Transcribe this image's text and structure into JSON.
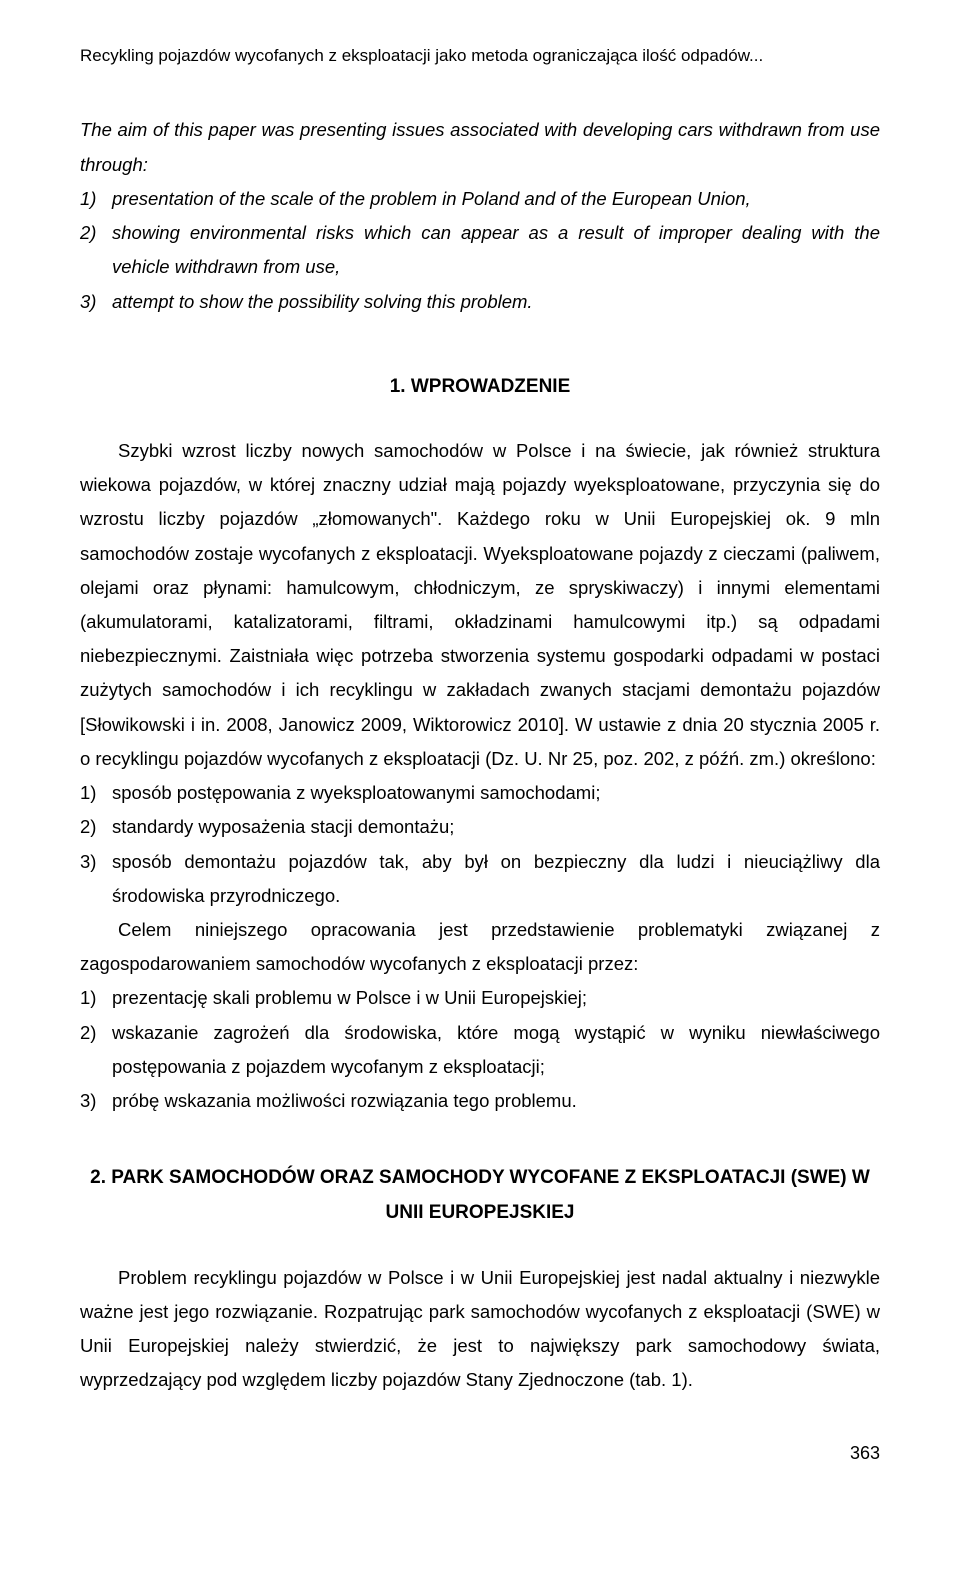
{
  "running_head": "Recykling pojazdów wycofanych z eksploatacji jako metoda ograniczająca ilość odpadów...",
  "abstract": {
    "intro": "The aim of this paper was presenting issues associated with developing cars withdrawn from use through:",
    "items": [
      {
        "num": "1)",
        "txt": "presentation of the scale of the problem in Poland and of the European Union,"
      },
      {
        "num": "2)",
        "txt": "showing environmental risks which can appear as a result of improper dealing with the vehicle withdrawn from use,"
      },
      {
        "num": "3)",
        "txt": "attempt to show the possibility solving this problem."
      }
    ]
  },
  "section1": {
    "heading": "1. WPROWADZENIE",
    "para1": "Szybki wzrost liczby nowych samochodów w Polsce i na świecie, jak również struktura wiekowa pojazdów, w której znaczny udział mają pojazdy wyeksploatowane, przyczynia się do wzrostu liczby pojazdów „złomowanych\". Każdego roku w Unii Europejskiej ok. 9 mln samochodów zostaje wycofanych z eksploatacji. Wyeksploatowane pojazdy z cieczami (paliwem, olejami oraz płynami: hamulcowym, chłodniczym, ze spryskiwaczy) i innymi elementami (akumulatorami, katalizatorami, filtrami, okładzinami hamulcowymi itp.) są odpadami niebezpiecznymi. Zaistniała więc potrzeba stworzenia systemu gospodarki odpadami w postaci zużytych samochodów i ich recyklingu w zakładach zwanych stacjami demontażu pojazdów [Słowikowski i in. 2008, Janowicz 2009, Wiktorowicz 2010]. W ustawie z dnia 20 stycznia 2005 r. o recyklingu pojazdów wycofanych z eksploatacji (Dz. U. Nr 25, poz. 202, z późń. zm.) określono:",
    "list1": [
      {
        "num": "1)",
        "txt": "sposób postępowania z wyeksploatowanymi samochodami;"
      },
      {
        "num": "2)",
        "txt": "standardy wyposażenia stacji demontażu;"
      },
      {
        "num": "3)",
        "txt": "sposób demontażu pojazdów tak, aby był on bezpieczny dla ludzi i nieuciążliwy dla środowiska przyrodniczego."
      }
    ],
    "para2": "Celem niniejszego opracowania jest przedstawienie problematyki związanej z zagospodarowaniem samochodów wycofanych z eksploatacji przez:",
    "list2": [
      {
        "num": "1)",
        "txt": "prezentację skali problemu w Polsce i w Unii Europejskiej;"
      },
      {
        "num": "2)",
        "txt": "wskazanie zagrożeń dla środowiska, które mogą wystąpić w wyniku niewłaściwego postępowania z pojazdem wycofanym z eksploatacji;"
      },
      {
        "num": "3)",
        "txt": "próbę wskazania możliwości rozwiązania tego problemu."
      }
    ]
  },
  "section2": {
    "heading": "2. PARK SAMOCHODÓW ORAZ SAMOCHODY WYCOFANE Z EKSPLOATACJI (SWE) W UNII EUROPEJSKIEJ",
    "para1": "Problem recyklingu pojazdów w Polsce i w Unii Europejskiej jest nadal aktualny i niezwykle ważne jest jego rozwiązanie. Rozpatrując park samochodów wycofanych z eksploatacji (SWE) w Unii Europejskiej należy stwierdzić, że jest to największy park samochodowy świata, wyprzedzający pod względem liczby pojazdów Stany Zjednoczone (tab. 1)."
  },
  "page_number": "363"
}
